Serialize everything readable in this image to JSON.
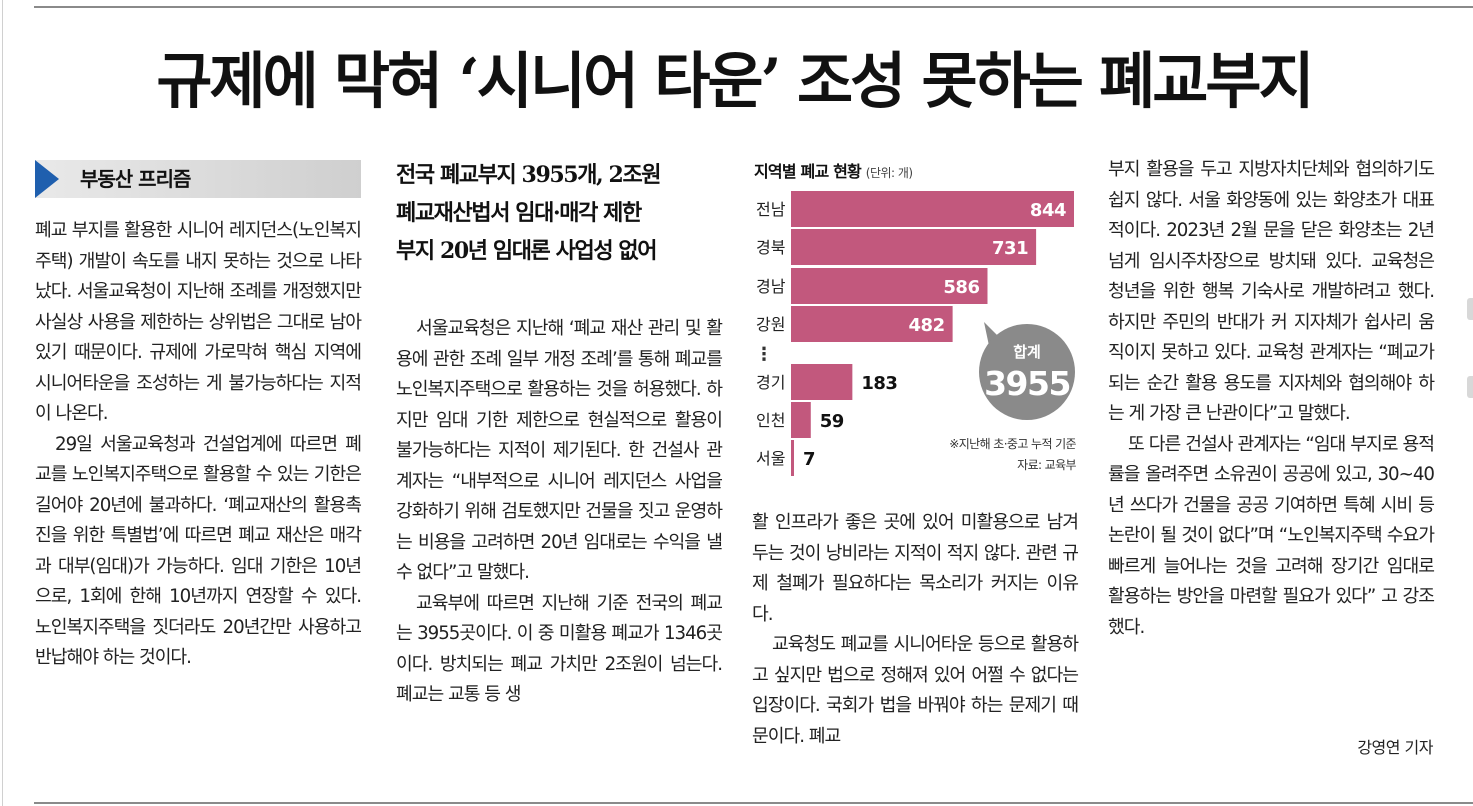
{
  "headline": "규제에 막혀 ‘시니어 타운’ 조성 못하는 폐교부지",
  "section_label": "부동산 프리즘",
  "subheadline": {
    "line1": "전국 폐교부지 3955개, 2조원",
    "line2": "폐교재산법서 임대·매각 제한",
    "line3": "부지 20년 임대론 사업성 없어"
  },
  "col1": {
    "p1": "폐교 부지를 활용한 시니어 레지던스(노인복지주택) 개발이 속도를 내지 못하는 것으로 나타났다. 서울교육청이 지난해 조례를 개정했지만 사실상 사용을 제한하는 상위법은 그대로 남아 있기 때문이다. 규제에 가로막혀 핵심 지역에 시니어타운을 조성하는 게 불가능하다는 지적이 나온다.",
    "p2": "29일 서울교육청과 건설업계에 따르면 폐교를 노인복지주택으로 활용할 수 있는 기한은 길어야 20년에 불과하다. ‘폐교재산의 활용촉진을 위한 특별법’에 따르면 폐교 재산은 매각과 대부(임대)가 가능하다. 임대 기한은 10년으로, 1회에 한해 10년까지 연장할 수 있다. 노인복지주택을 짓더라도 20년간만 사용하고 반납해야 하는 것이다."
  },
  "col2": {
    "p1": "서울교육청은 지난해 ‘폐교 재산 관리 및 활용에 관한 조례 일부 개정 조례’를 통해 폐교를 노인복지주택으로 활용하는 것을 허용했다. 하지만 임대 기한 제한으로 현실적으로 활용이 불가능하다는 지적이 제기된다. 한 건설사 관계자는 “내부적으로 시니어 레지던스 사업을 강화하기 위해 검토했지만 건물을 짓고 운영하는 비용을 고려하면 20년 임대로는 수익을 낼 수 없다”고 말했다.",
    "p2": "교육부에 따르면 지난해 기준 전국의 폐교는 3955곳이다. 이 중 미활용 폐교가 1346곳이다. 방치되는 폐교 가치만 2조원이 넘는다. 폐교는 교통 등 생"
  },
  "col3": {
    "p1": "활 인프라가 좋은 곳에 있어 미활용으로 남겨두는 것이 낭비라는 지적이 적지 않다. 관련 규제 철폐가 필요하다는 목소리가 커지는 이유다.",
    "p2": "교육청도 폐교를 시니어타운 등으로 활용하고 싶지만 법으로 정해져 있어 어쩔 수 없다는 입장이다. 국회가 법을 바꿔야 하는 문제기 때문이다. 폐교"
  },
  "col4": {
    "p1": "부지 활용을 두고 지방자치단체와 협의하기도 쉽지 않다. 서울 화양동에 있는 화양초가 대표적이다. 2023년 2월 문을 닫은 화양초는 2년 넘게 임시주차장으로 방치돼 있다. 교육청은 청년을 위한 행복 기숙사로 개발하려고 했다. 하지만 주민의 반대가 커 지자체가 쉽사리 움직이지 못하고 있다. 교육청 관계자는 “폐교가 되는 순간 활용 용도를 지자체와 협의해야 하는 게 가장 큰 난관이다”고 말했다.",
    "p2": "또 다른 건설사 관계자는 “임대 부지로 용적률을 올려주면 소유권이 공공에 있고, 30~40년 쓰다가 건물을 공공 기여하면 특혜 시비 등 논란이 될 것이 없다”며 “노인복지주택 수요가 빠르게 늘어나는 것을 고려해 장기간 임대로 활용하는 방안을 마련할 필요가 있다” 고 강조했다."
  },
  "byline": "강영연 기자",
  "chart_data": {
    "type": "bar",
    "orientation": "horizontal",
    "title": "지역별 폐교 현황",
    "unit": "(단위: 개)",
    "categories": [
      "전남",
      "경북",
      "경남",
      "강원",
      "경기",
      "인천",
      "서울"
    ],
    "values": [
      844,
      731,
      586,
      482,
      183,
      59,
      7
    ],
    "gap_marker": "⋮",
    "total_label": "합계",
    "total_value": "3955",
    "note": "※지난해 초·중고 누적 기준",
    "source": "자료: 교육부",
    "bar_color": "#c2587d",
    "total_circle_color": "#8a8a8a"
  }
}
